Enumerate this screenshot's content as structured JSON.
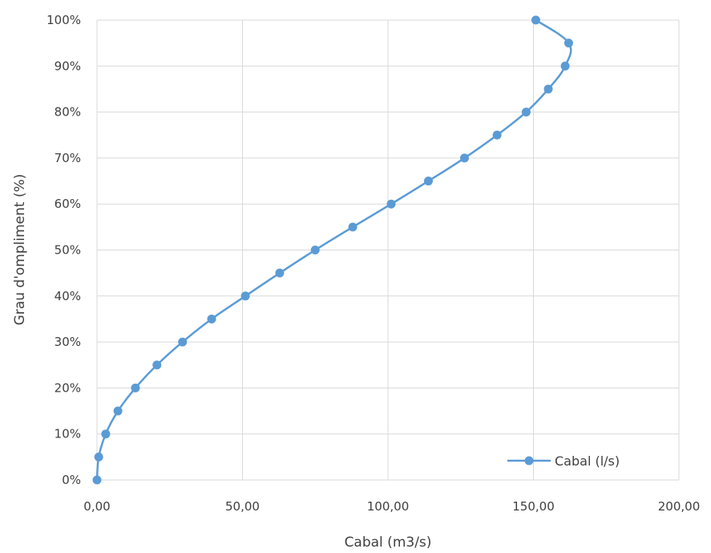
{
  "chart_data": {
    "type": "scatter",
    "title": "",
    "xlabel": "Cabal (m3/s)",
    "ylabel": "Grau d'ompliment (%)",
    "xlim": [
      0,
      200
    ],
    "ylim": [
      0,
      100
    ],
    "x_ticks": [
      0,
      50,
      100,
      150,
      200
    ],
    "x_tick_labels": [
      "0,00",
      "50,00",
      "100,00",
      "150,00",
      "200,00"
    ],
    "y_ticks": [
      0,
      10,
      20,
      30,
      40,
      50,
      60,
      70,
      80,
      90,
      100
    ],
    "y_tick_labels": [
      "0%",
      "10%",
      "20%",
      "30%",
      "40%",
      "50%",
      "60%",
      "70%",
      "80%",
      "90%",
      "100%"
    ],
    "grid": true,
    "legend_position": "bottom-right",
    "series": [
      {
        "name": "Cabal (l/s)",
        "color": "#5b9bd5",
        "x": [
          0.0,
          0.6,
          3.0,
          7.2,
          13.2,
          20.6,
          29.4,
          39.4,
          51.0,
          62.8,
          75.0,
          87.9,
          101.1,
          113.9,
          126.3,
          137.5,
          147.5,
          155.1,
          160.9,
          162.1,
          150.8
        ],
        "y": [
          0,
          5,
          10,
          15,
          20,
          25,
          30,
          35,
          40,
          45,
          50,
          55,
          60,
          65,
          70,
          75,
          80,
          85,
          90,
          95,
          100
        ]
      }
    ]
  }
}
